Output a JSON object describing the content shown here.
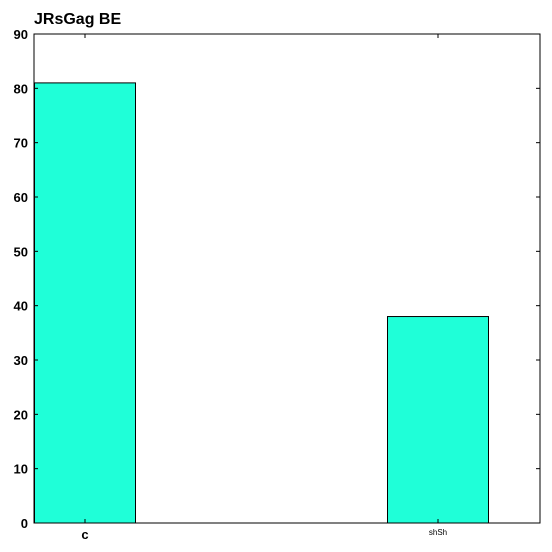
{
  "chart_data": {
    "type": "bar",
    "title": "JRsGag BE",
    "xlabel": "",
    "ylabel": "",
    "categories": [
      "c",
      "shSh"
    ],
    "values": [
      81,
      38
    ],
    "ylim": [
      0,
      90
    ],
    "yticks": [
      0,
      10,
      20,
      30,
      40,
      50,
      60,
      70,
      80,
      90
    ],
    "bar_color": "#1fffd8",
    "grid": false,
    "legend": "none"
  }
}
